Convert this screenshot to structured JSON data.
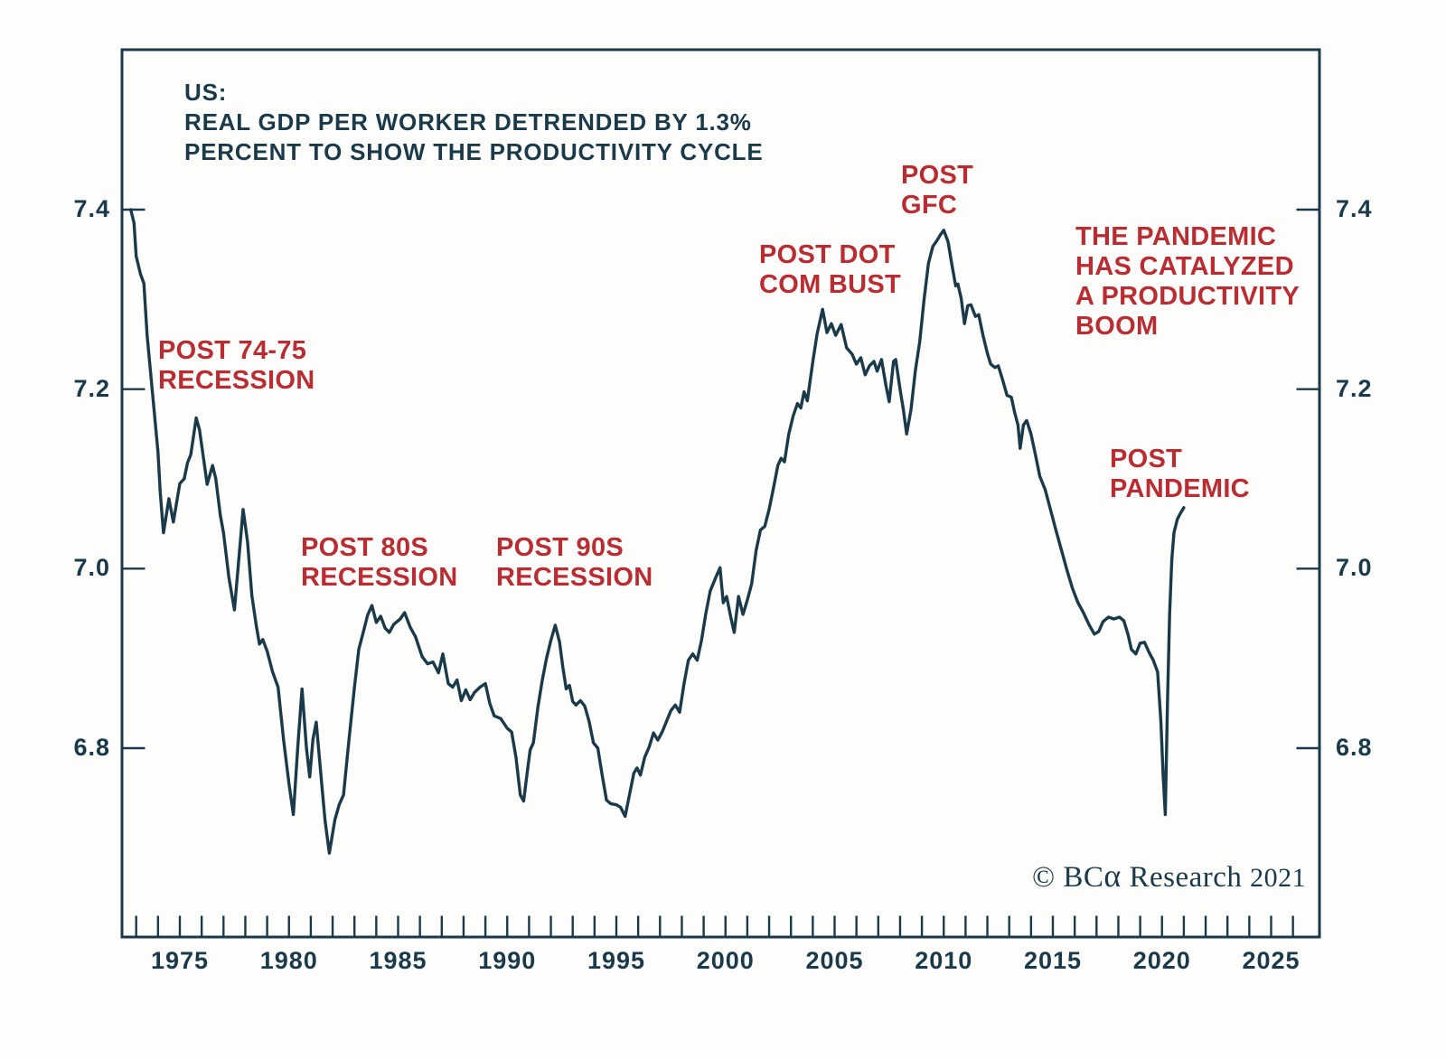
{
  "page": {
    "background": "#fdfdfc"
  },
  "colors": {
    "line": "#1b3a49",
    "frame": "#1b3a49",
    "axis_text": "#1b3a49",
    "annotation_red": "#b92d32"
  },
  "title": {
    "text": "US:\nREAL GDP PER WORKER DETRENDED BY 1.3%\nPERCENT TO SHOW THE PRODUCTIVITY CYCLE"
  },
  "copyright": {
    "prefix": "© BC",
    "alpha": "α",
    "suffix": " Research ",
    "year": "2021"
  },
  "chart_data": {
    "type": "line",
    "title": "US: REAL GDP PER WORKER DETRENDED BY 1.3% PERCENT TO SHOW THE PRODUCTIVITY CYCLE",
    "xlabel": "",
    "ylabel": "",
    "grid": false,
    "legend": "none",
    "x_axis": {
      "range": [
        1972.2,
        2027.1
      ],
      "minor_tick_interval_years": 1,
      "first_tick": 1973,
      "last_tick": 2026,
      "labels": [
        "1975",
        "1980",
        "1985",
        "1990",
        "1995",
        "2000",
        "2005",
        "2010",
        "2015",
        "2020",
        "2025"
      ],
      "label_years": [
        1975,
        1980,
        1985,
        1990,
        1995,
        2000,
        2005,
        2010,
        2015,
        2020,
        2025
      ]
    },
    "y_axis": {
      "range": [
        6.59,
        7.578
      ],
      "ticks": [
        7.4,
        7.2,
        7.0,
        6.8
      ],
      "labels": [
        "7.4",
        "7.2",
        "7.0",
        "6.8"
      ],
      "label_sides": "both"
    },
    "annotations": [
      {
        "id": "post-74-75-recession",
        "text": "POST 74-75\nRECESSION"
      },
      {
        "id": "post-80s-recession",
        "text": "POST 80S\nRECESSION"
      },
      {
        "id": "post-90s-recession",
        "text": "POST 90S\nRECESSION"
      },
      {
        "id": "post-dot-com-bust",
        "text": "POST DOT\nCOM BUST"
      },
      {
        "id": "post-gfc",
        "text": "POST\nGFC"
      },
      {
        "id": "pandemic-productivity-boom",
        "text": "THE PANDEMIC\nHAS CATALYZED\nA PRODUCTIVITY\nBOOM"
      },
      {
        "id": "post-pandemic",
        "text": "POST\nPANDEMIC"
      }
    ],
    "series": [
      {
        "name": "Real GDP per worker, detrended by 1.3% (log level)",
        "color": "#1b3a49",
        "points": [
          [
            1972.75,
            7.4
          ],
          [
            1972.9,
            7.385
          ],
          [
            1973.0,
            7.348
          ],
          [
            1973.2,
            7.328
          ],
          [
            1973.35,
            7.318
          ],
          [
            1973.5,
            7.26
          ],
          [
            1973.75,
            7.195
          ],
          [
            1974.0,
            7.13
          ],
          [
            1974.1,
            7.085
          ],
          [
            1974.25,
            7.04
          ],
          [
            1974.5,
            7.078
          ],
          [
            1974.7,
            7.052
          ],
          [
            1975.0,
            7.095
          ],
          [
            1975.2,
            7.1
          ],
          [
            1975.35,
            7.118
          ],
          [
            1975.5,
            7.127
          ],
          [
            1975.75,
            7.168
          ],
          [
            1975.9,
            7.155
          ],
          [
            1976.1,
            7.12
          ],
          [
            1976.25,
            7.094
          ],
          [
            1976.5,
            7.115
          ],
          [
            1976.65,
            7.1
          ],
          [
            1976.85,
            7.06
          ],
          [
            1977.0,
            7.04
          ],
          [
            1977.25,
            6.99
          ],
          [
            1977.5,
            6.954
          ],
          [
            1977.7,
            7.01
          ],
          [
            1977.9,
            7.066
          ],
          [
            1978.1,
            7.03
          ],
          [
            1978.3,
            6.97
          ],
          [
            1978.5,
            6.937
          ],
          [
            1978.65,
            6.916
          ],
          [
            1978.8,
            6.921
          ],
          [
            1979.0,
            6.908
          ],
          [
            1979.25,
            6.885
          ],
          [
            1979.5,
            6.868
          ],
          [
            1979.75,
            6.81
          ],
          [
            1980.0,
            6.76
          ],
          [
            1980.2,
            6.726
          ],
          [
            1980.4,
            6.8
          ],
          [
            1980.6,
            6.866
          ],
          [
            1980.8,
            6.8
          ],
          [
            1980.95,
            6.768
          ],
          [
            1981.1,
            6.81
          ],
          [
            1981.25,
            6.829
          ],
          [
            1981.5,
            6.76
          ],
          [
            1981.65,
            6.72
          ],
          [
            1981.85,
            6.683
          ],
          [
            1982.1,
            6.72
          ],
          [
            1982.3,
            6.737
          ],
          [
            1982.5,
            6.748
          ],
          [
            1982.75,
            6.81
          ],
          [
            1983.0,
            6.868
          ],
          [
            1983.2,
            6.91
          ],
          [
            1983.4,
            6.929
          ],
          [
            1983.6,
            6.948
          ],
          [
            1983.8,
            6.959
          ],
          [
            1984.0,
            6.94
          ],
          [
            1984.2,
            6.947
          ],
          [
            1984.4,
            6.934
          ],
          [
            1984.6,
            6.929
          ],
          [
            1984.8,
            6.938
          ],
          [
            1985.1,
            6.944
          ],
          [
            1985.3,
            6.951
          ],
          [
            1985.55,
            6.935
          ],
          [
            1985.8,
            6.924
          ],
          [
            1986.1,
            6.902
          ],
          [
            1986.35,
            6.894
          ],
          [
            1986.6,
            6.896
          ],
          [
            1986.85,
            6.884
          ],
          [
            1987.05,
            6.905
          ],
          [
            1987.3,
            6.872
          ],
          [
            1987.5,
            6.868
          ],
          [
            1987.7,
            6.876
          ],
          [
            1987.9,
            6.853
          ],
          [
            1988.1,
            6.865
          ],
          [
            1988.3,
            6.854
          ],
          [
            1988.5,
            6.862
          ],
          [
            1988.75,
            6.868
          ],
          [
            1989.0,
            6.872
          ],
          [
            1989.2,
            6.85
          ],
          [
            1989.4,
            6.836
          ],
          [
            1989.7,
            6.833
          ],
          [
            1990.0,
            6.822
          ],
          [
            1990.2,
            6.818
          ],
          [
            1990.4,
            6.79
          ],
          [
            1990.6,
            6.748
          ],
          [
            1990.75,
            6.741
          ],
          [
            1990.9,
            6.77
          ],
          [
            1991.05,
            6.798
          ],
          [
            1991.2,
            6.806
          ],
          [
            1991.4,
            6.845
          ],
          [
            1991.6,
            6.875
          ],
          [
            1991.8,
            6.9
          ],
          [
            1992.0,
            6.92
          ],
          [
            1992.2,
            6.937
          ],
          [
            1992.4,
            6.918
          ],
          [
            1992.55,
            6.89
          ],
          [
            1992.7,
            6.866
          ],
          [
            1992.85,
            6.87
          ],
          [
            1993.0,
            6.852
          ],
          [
            1993.15,
            6.848
          ],
          [
            1993.35,
            6.853
          ],
          [
            1993.55,
            6.847
          ],
          [
            1993.75,
            6.83
          ],
          [
            1993.95,
            6.806
          ],
          [
            1994.15,
            6.8
          ],
          [
            1994.35,
            6.77
          ],
          [
            1994.55,
            6.742
          ],
          [
            1994.75,
            6.738
          ],
          [
            1995.0,
            6.737
          ],
          [
            1995.2,
            6.734
          ],
          [
            1995.4,
            6.724
          ],
          [
            1995.6,
            6.748
          ],
          [
            1995.8,
            6.772
          ],
          [
            1995.95,
            6.778
          ],
          [
            1996.1,
            6.77
          ],
          [
            1996.3,
            6.79
          ],
          [
            1996.5,
            6.801
          ],
          [
            1996.7,
            6.817
          ],
          [
            1996.9,
            6.809
          ],
          [
            1997.1,
            6.818
          ],
          [
            1997.3,
            6.83
          ],
          [
            1997.5,
            6.842
          ],
          [
            1997.7,
            6.848
          ],
          [
            1997.9,
            6.84
          ],
          [
            1998.1,
            6.872
          ],
          [
            1998.3,
            6.898
          ],
          [
            1998.5,
            6.905
          ],
          [
            1998.7,
            6.898
          ],
          [
            1998.9,
            6.92
          ],
          [
            1999.1,
            6.95
          ],
          [
            1999.3,
            6.975
          ],
          [
            1999.55,
            6.99
          ],
          [
            1999.75,
            7.001
          ],
          [
            1999.9,
            6.962
          ],
          [
            2000.05,
            6.969
          ],
          [
            2000.25,
            6.945
          ],
          [
            2000.4,
            6.929
          ],
          [
            2000.6,
            6.969
          ],
          [
            2000.8,
            6.949
          ],
          [
            2001.0,
            6.965
          ],
          [
            2001.2,
            6.983
          ],
          [
            2001.4,
            7.02
          ],
          [
            2001.6,
            7.043
          ],
          [
            2001.8,
            7.047
          ],
          [
            2002.0,
            7.066
          ],
          [
            2002.2,
            7.09
          ],
          [
            2002.4,
            7.115
          ],
          [
            2002.55,
            7.123
          ],
          [
            2002.7,
            7.119
          ],
          [
            2002.9,
            7.15
          ],
          [
            2003.1,
            7.17
          ],
          [
            2003.3,
            7.184
          ],
          [
            2003.45,
            7.179
          ],
          [
            2003.6,
            7.197
          ],
          [
            2003.75,
            7.187
          ],
          [
            2004.0,
            7.23
          ],
          [
            2004.2,
            7.262
          ],
          [
            2004.45,
            7.289
          ],
          [
            2004.65,
            7.263
          ],
          [
            2004.85,
            7.273
          ],
          [
            2005.05,
            7.26
          ],
          [
            2005.3,
            7.272
          ],
          [
            2005.55,
            7.246
          ],
          [
            2005.8,
            7.239
          ],
          [
            2006.0,
            7.228
          ],
          [
            2006.2,
            7.235
          ],
          [
            2006.4,
            7.216
          ],
          [
            2006.6,
            7.226
          ],
          [
            2006.8,
            7.231
          ],
          [
            2006.95,
            7.22
          ],
          [
            2007.15,
            7.233
          ],
          [
            2007.35,
            7.204
          ],
          [
            2007.5,
            7.186
          ],
          [
            2007.7,
            7.231
          ],
          [
            2007.8,
            7.233
          ],
          [
            2008.0,
            7.2
          ],
          [
            2008.15,
            7.177
          ],
          [
            2008.3,
            7.15
          ],
          [
            2008.5,
            7.177
          ],
          [
            2008.7,
            7.221
          ],
          [
            2008.9,
            7.253
          ],
          [
            2009.1,
            7.3
          ],
          [
            2009.3,
            7.34
          ],
          [
            2009.5,
            7.359
          ],
          [
            2009.7,
            7.366
          ],
          [
            2009.85,
            7.372
          ],
          [
            2010.0,
            7.377
          ],
          [
            2010.2,
            7.364
          ],
          [
            2010.35,
            7.342
          ],
          [
            2010.55,
            7.315
          ],
          [
            2010.65,
            7.317
          ],
          [
            2010.8,
            7.301
          ],
          [
            2010.95,
            7.273
          ],
          [
            2011.1,
            7.293
          ],
          [
            2011.25,
            7.294
          ],
          [
            2011.45,
            7.281
          ],
          [
            2011.6,
            7.283
          ],
          [
            2011.8,
            7.26
          ],
          [
            2012.0,
            7.24
          ],
          [
            2012.15,
            7.228
          ],
          [
            2012.35,
            7.224
          ],
          [
            2012.5,
            7.226
          ],
          [
            2012.7,
            7.21
          ],
          [
            2012.9,
            7.193
          ],
          [
            2013.1,
            7.191
          ],
          [
            2013.25,
            7.174
          ],
          [
            2013.4,
            7.16
          ],
          [
            2013.5,
            7.134
          ],
          [
            2013.65,
            7.16
          ],
          [
            2013.8,
            7.165
          ],
          [
            2014.0,
            7.15
          ],
          [
            2014.2,
            7.127
          ],
          [
            2014.4,
            7.103
          ],
          [
            2014.65,
            7.088
          ],
          [
            2014.9,
            7.065
          ],
          [
            2015.15,
            7.042
          ],
          [
            2015.4,
            7.02
          ],
          [
            2015.65,
            6.998
          ],
          [
            2015.9,
            6.978
          ],
          [
            2016.15,
            6.962
          ],
          [
            2016.4,
            6.951
          ],
          [
            2016.65,
            6.938
          ],
          [
            2016.9,
            6.927
          ],
          [
            2017.1,
            6.93
          ],
          [
            2017.3,
            6.941
          ],
          [
            2017.55,
            6.946
          ],
          [
            2017.8,
            6.944
          ],
          [
            2018.05,
            6.946
          ],
          [
            2018.25,
            6.942
          ],
          [
            2018.45,
            6.926
          ],
          [
            2018.6,
            6.91
          ],
          [
            2018.8,
            6.905
          ],
          [
            2019.0,
            6.917
          ],
          [
            2019.2,
            6.918
          ],
          [
            2019.4,
            6.907
          ],
          [
            2019.6,
            6.898
          ],
          [
            2019.8,
            6.885
          ],
          [
            2019.95,
            6.83
          ],
          [
            2020.05,
            6.77
          ],
          [
            2020.15,
            6.726
          ],
          [
            2020.25,
            6.85
          ],
          [
            2020.35,
            6.95
          ],
          [
            2020.45,
            7.01
          ],
          [
            2020.55,
            7.04
          ],
          [
            2020.7,
            7.055
          ],
          [
            2020.85,
            7.062
          ],
          [
            2021.0,
            7.068
          ]
        ]
      }
    ],
    "source_note": "© BCα Research 2021"
  }
}
